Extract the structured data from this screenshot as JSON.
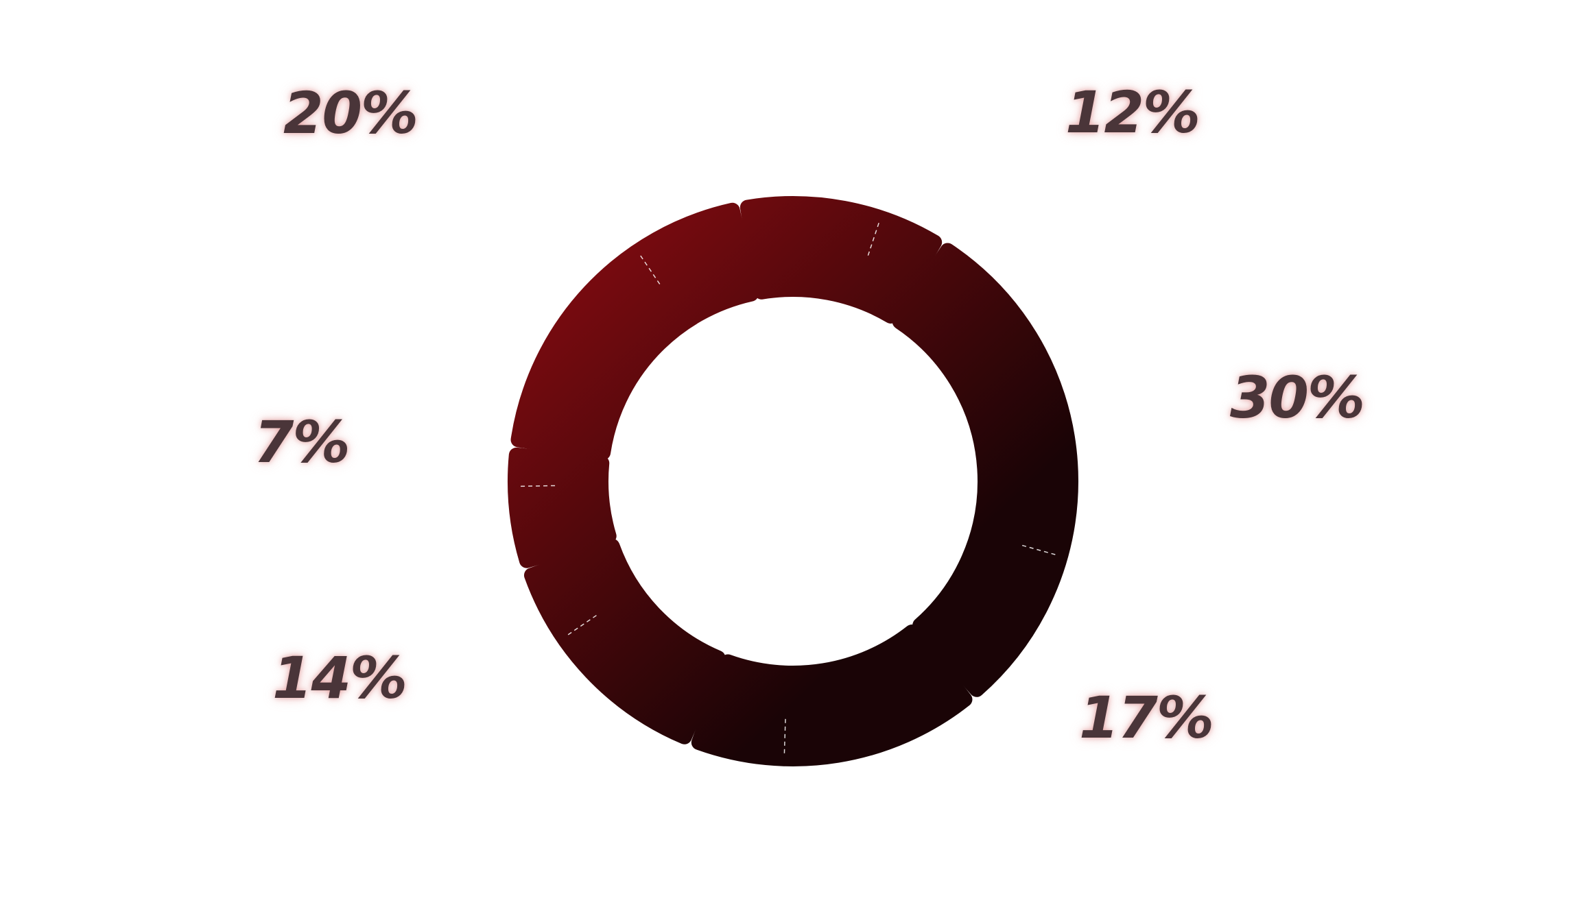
{
  "chart_data": {
    "type": "pie",
    "variant": "donut",
    "title": "",
    "slices": [
      {
        "label": "12%",
        "value": 12
      },
      {
        "label": "30%",
        "value": 30
      },
      {
        "label": "17%",
        "value": 17
      },
      {
        "label": "14%",
        "value": 14
      },
      {
        "label": "7%",
        "value": 7
      },
      {
        "label": "20%",
        "value": 20
      }
    ],
    "start_angle_deg": -11,
    "direction": "clockwise",
    "gradient_colors": [
      "#7d0b10",
      "#1a0406"
    ],
    "label_color": "#4a3539",
    "legend": "none",
    "grid": false
  }
}
